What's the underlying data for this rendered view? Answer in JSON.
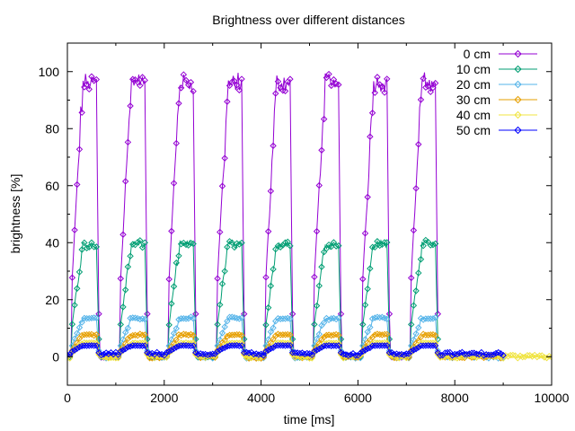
{
  "chart_data": {
    "type": "line",
    "title": "Brightness over different distances",
    "xlabel": "time [ms]",
    "ylabel": "brightness [%]",
    "xlim": [
      0,
      10000
    ],
    "ylim": [
      -10,
      110
    ],
    "xticks": [
      0,
      2000,
      4000,
      6000,
      8000,
      10000
    ],
    "yticks": [
      0,
      20,
      40,
      60,
      80,
      100
    ],
    "grid": false,
    "legend_position": "top-right",
    "pulse_starts_ms": [
      100,
      1100,
      2100,
      3100,
      4100,
      5100,
      6100,
      7100
    ],
    "pulse_width_ms": 500,
    "series": [
      {
        "name": "0 cm",
        "color": "#9400d3",
        "marker": "diamond",
        "peak": 100,
        "base": 0,
        "end_ms": 7650
      },
      {
        "name": "10 cm",
        "color": "#009e73",
        "marker": "diamond",
        "peak": 41,
        "base": 0,
        "end_ms": 7650
      },
      {
        "name": "20 cm",
        "color": "#56b4e9",
        "marker": "diamond",
        "peak": 14,
        "base": 0,
        "end_ms": 9000
      },
      {
        "name": "30 cm",
        "color": "#e69f00",
        "marker": "diamond",
        "peak": 8,
        "base": 0,
        "end_ms": 9000
      },
      {
        "name": "40 cm",
        "color": "#f0e442",
        "marker": "diamond",
        "peak": 5,
        "base": 0,
        "end_ms": 10000
      },
      {
        "name": "50 cm",
        "color": "#0000ff",
        "marker": "diamond",
        "peak": 4,
        "base": 1,
        "end_ms": 9000
      }
    ]
  }
}
